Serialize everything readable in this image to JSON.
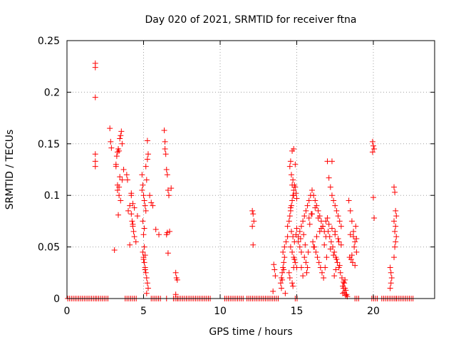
{
  "chart_data": {
    "type": "scatter",
    "title": "Day 020 of 2021, SRMTID for receiver ftna",
    "xlabel": "GPS time / hours",
    "ylabel": "SRMTID / TECUs",
    "xlim": [
      0,
      24
    ],
    "ylim": [
      0,
      0.25
    ],
    "xticks": [
      0,
      5,
      10,
      15,
      20
    ],
    "yticks": [
      0,
      0.05,
      0.1,
      0.15,
      0.2,
      0.25
    ],
    "ytick_labels": [
      "0",
      "0.05",
      "0.1",
      "0.15",
      "0.2",
      "0.25"
    ],
    "grid": true,
    "marker": "+",
    "series_color": "#ff0000",
    "x": [
      1.85,
      1.85,
      1.85,
      1.85,
      1.85,
      1.85,
      1.85,
      2.8,
      2.85,
      2.9,
      3.1,
      3.2,
      3.25,
      3.3,
      3.35,
      3.4,
      3.45,
      3.5,
      3.55,
      3.6,
      3.7,
      3.3,
      3.3,
      3.4,
      3.5,
      3.2,
      3.4,
      3.6,
      3.35,
      3.45,
      3.9,
      3.95,
      4.0,
      4.1,
      4.2,
      4.25,
      4.3,
      4.35,
      4.4,
      4.5,
      4.2,
      4.3,
      4.4,
      4.6,
      4.1,
      4.2,
      4.3,
      4.9,
      4.95,
      5.0,
      5.05,
      5.1,
      4.95,
      5.0,
      5.05,
      5.1,
      5.15,
      5.2,
      5.25,
      5.3,
      5.25,
      5.15,
      5.3,
      4.9,
      5.0,
      5.05,
      5.1,
      5.2,
      4.95,
      5.05,
      5.15,
      5.2,
      5.25,
      5.0,
      5.1,
      5.4,
      5.5,
      5.6,
      5.8,
      6.0,
      6.35,
      6.4,
      6.45,
      6.5,
      6.55,
      6.6,
      6.65,
      6.7,
      6.8,
      6.4,
      6.5,
      6.55,
      6.6,
      6.5,
      7.1,
      7.15,
      7.2,
      7.1,
      7.2,
      12.1,
      12.15,
      12.2,
      12.1,
      12.15,
      13.5,
      13.55,
      13.6,
      13.45,
      13.95,
      14.0,
      14.05,
      14.1,
      14.15,
      14.2,
      14.25,
      14.0,
      14.1,
      14.2,
      14.3,
      14.4,
      14.05,
      14.15,
      14.4,
      14.5,
      14.55,
      14.6,
      14.65,
      14.7,
      14.75,
      14.8,
      14.85,
      14.9,
      14.95,
      15.0,
      14.55,
      14.6,
      14.7,
      14.8,
      14.9,
      14.65,
      14.75,
      14.85,
      14.6,
      14.7,
      14.8,
      14.9,
      15.0,
      14.5,
      14.55,
      14.7,
      14.75,
      14.8,
      14.85,
      14.95,
      15.0,
      14.6,
      14.7,
      14.8,
      14.65,
      14.75,
      15.1,
      15.2,
      15.3,
      15.4,
      15.5,
      15.6,
      15.7,
      15.8,
      15.9,
      15.2,
      15.3,
      15.5,
      15.6,
      15.7,
      15.1,
      15.25,
      15.45,
      15.55,
      15.75,
      15.85,
      15.3,
      15.4,
      15.65,
      15.8,
      15.95,
      16.0,
      16.1,
      16.2,
      16.3,
      16.4,
      16.5,
      16.6,
      16.7,
      16.8,
      16.9,
      16.05,
      16.15,
      16.25,
      16.35,
      16.45,
      16.55,
      16.65,
      16.75,
      16.85,
      16.95,
      16.1,
      16.3,
      16.5,
      16.7,
      16.9,
      16.2,
      16.4,
      16.6,
      16.8,
      16.0,
      17.0,
      17.1,
      17.2,
      17.3,
      17.4,
      17.5,
      17.6,
      17.7,
      17.8,
      17.9,
      17.05,
      17.15,
      17.25,
      17.35,
      17.45,
      17.55,
      17.65,
      17.75,
      17.85,
      17.95,
      17.1,
      17.3,
      17.5,
      17.7,
      17.9,
      17.2,
      17.4,
      17.6,
      17.8,
      17.0,
      17.3,
      17.5,
      17.75,
      17.45,
      17.55,
      18.0,
      18.05,
      18.1,
      18.15,
      18.2,
      18.25,
      18.3,
      18.0,
      18.1,
      18.2,
      18.05,
      18.15,
      18.4,
      18.5,
      18.6,
      18.7,
      18.8,
      18.9,
      18.45,
      18.55,
      18.65,
      18.75,
      18.85,
      18.5,
      18.7,
      18.9,
      18.6,
      18.8,
      19.95,
      20.0,
      20.05,
      19.95,
      20.0,
      20.05,
      21.1,
      21.15,
      21.2,
      21.15,
      21.1,
      21.35,
      21.4,
      21.45,
      21.5,
      21.35,
      21.45,
      21.4,
      21.5,
      21.45,
      21.4,
      21.35,
      21.5
    ],
    "y": [
      0.228,
      0.224,
      0.195,
      0.14,
      0.133,
      0.128,
      0.0,
      0.165,
      0.152,
      0.146,
      0.047,
      0.13,
      0.138,
      0.142,
      0.145,
      0.143,
      0.155,
      0.158,
      0.162,
      0.15,
      0.125,
      0.11,
      0.105,
      0.1,
      0.095,
      0.128,
      0.108,
      0.115,
      0.081,
      0.118,
      0.12,
      0.115,
      0.085,
      0.09,
      0.082,
      0.075,
      0.07,
      0.065,
      0.06,
      0.055,
      0.102,
      0.092,
      0.088,
      0.08,
      0.052,
      0.1,
      0.072,
      0.12,
      0.11,
      0.1,
      0.095,
      0.09,
      0.045,
      0.04,
      0.035,
      0.03,
      0.025,
      0.02,
      0.015,
      0.01,
      0.135,
      0.128,
      0.14,
      0.105,
      0.062,
      0.05,
      0.042,
      0.005,
      0.075,
      0.068,
      0.085,
      0.115,
      0.153,
      0.038,
      0.028,
      0.1,
      0.093,
      0.09,
      0.067,
      0.062,
      0.163,
      0.152,
      0.14,
      0.125,
      0.12,
      0.105,
      0.1,
      0.065,
      0.107,
      0.145,
      0.062,
      0.064,
      0.044,
      0.0,
      0.025,
      0.02,
      0.018,
      0.004,
      0.0,
      0.085,
      0.082,
      0.075,
      0.07,
      0.052,
      0.033,
      0.028,
      0.022,
      0.007,
      0.015,
      0.02,
      0.025,
      0.03,
      0.035,
      0.04,
      0.005,
      0.01,
      0.045,
      0.05,
      0.055,
      0.06,
      0.018,
      0.028,
      0.07,
      0.075,
      0.08,
      0.085,
      0.09,
      0.095,
      0.1,
      0.105,
      0.11,
      0.108,
      0.102,
      0.097,
      0.128,
      0.133,
      0.143,
      0.145,
      0.13,
      0.065,
      0.06,
      0.055,
      0.05,
      0.045,
      0.04,
      0.035,
      0.03,
      0.025,
      0.02,
      0.015,
      0.012,
      0.03,
      0.038,
      0.062,
      0.068,
      0.088,
      0.11,
      0.1,
      0.12,
      0.115,
      0.06,
      0.065,
      0.07,
      0.075,
      0.08,
      0.085,
      0.09,
      0.095,
      0.1,
      0.05,
      0.045,
      0.04,
      0.035,
      0.03,
      0.055,
      0.058,
      0.062,
      0.052,
      0.045,
      0.072,
      0.03,
      0.022,
      0.025,
      0.078,
      0.082,
      0.105,
      0.1,
      0.095,
      0.09,
      0.085,
      0.08,
      0.075,
      0.07,
      0.065,
      0.06,
      0.055,
      0.05,
      0.045,
      0.04,
      0.035,
      0.03,
      0.025,
      0.02,
      0.03,
      0.04,
      0.05,
      0.06,
      0.065,
      0.07,
      0.075,
      0.088,
      0.078,
      0.068,
      0.052,
      0.082,
      0.133,
      0.117,
      0.108,
      0.1,
      0.095,
      0.09,
      0.085,
      0.08,
      0.075,
      0.07,
      0.065,
      0.06,
      0.055,
      0.05,
      0.045,
      0.04,
      0.035,
      0.03,
      0.025,
      0.02,
      0.072,
      0.068,
      0.062,
      0.058,
      0.052,
      0.048,
      0.042,
      0.038,
      0.032,
      0.078,
      0.133,
      0.065,
      0.055,
      0.022,
      0.028,
      0.005,
      0.01,
      0.015,
      0.018,
      0.008,
      0.004,
      0.002,
      0.012,
      0.006,
      0.003,
      0.016,
      0.01,
      0.095,
      0.085,
      0.075,
      0.065,
      0.055,
      0.045,
      0.04,
      0.038,
      0.035,
      0.05,
      0.07,
      0.062,
      0.06,
      0.058,
      0.042,
      0.032,
      0.152,
      0.148,
      0.145,
      0.142,
      0.098,
      0.078,
      0.03,
      0.025,
      0.02,
      0.015,
      0.01,
      0.108,
      0.103,
      0.085,
      0.08,
      0.075,
      0.07,
      0.065,
      0.06,
      0.055,
      0.05,
      0.04,
      0.0
    ],
    "zero_band": {
      "x_ranges": [
        [
          0.05,
          1.75
        ],
        [
          1.95,
          2.7
        ],
        [
          3.8,
          4.55
        ],
        [
          5.5,
          6.15
        ],
        [
          6.95,
          9.4
        ],
        [
          10.3,
          11.5
        ],
        [
          11.75,
          13.85
        ],
        [
          14.9,
          15.05
        ],
        [
          18.8,
          19.1
        ],
        [
          19.9,
          20.3
        ],
        [
          20.55,
          22.65
        ]
      ],
      "spacing_hours": 0.12,
      "y": 0
    }
  }
}
